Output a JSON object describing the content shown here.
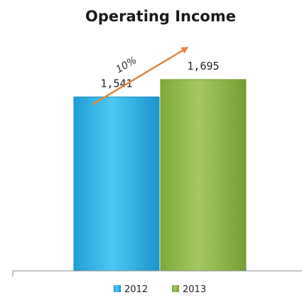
{
  "chart_data": {
    "type": "bar",
    "title": "Operating Income",
    "categories": [
      "2012",
      "2013"
    ],
    "values": [
      1541,
      1695
    ],
    "value_labels": [
      "1,541",
      "1,695"
    ],
    "colors": [
      "#29b6ea",
      "#8fb849"
    ],
    "legend": {
      "position": "bottom",
      "entries": [
        "2012",
        "2013"
      ]
    },
    "annotation": {
      "text": "10%",
      "type": "growth-arrow",
      "color": "#e8843a"
    },
    "ylim": [
      0,
      2400
    ],
    "grid": false,
    "xlabel": "",
    "ylabel": ""
  }
}
